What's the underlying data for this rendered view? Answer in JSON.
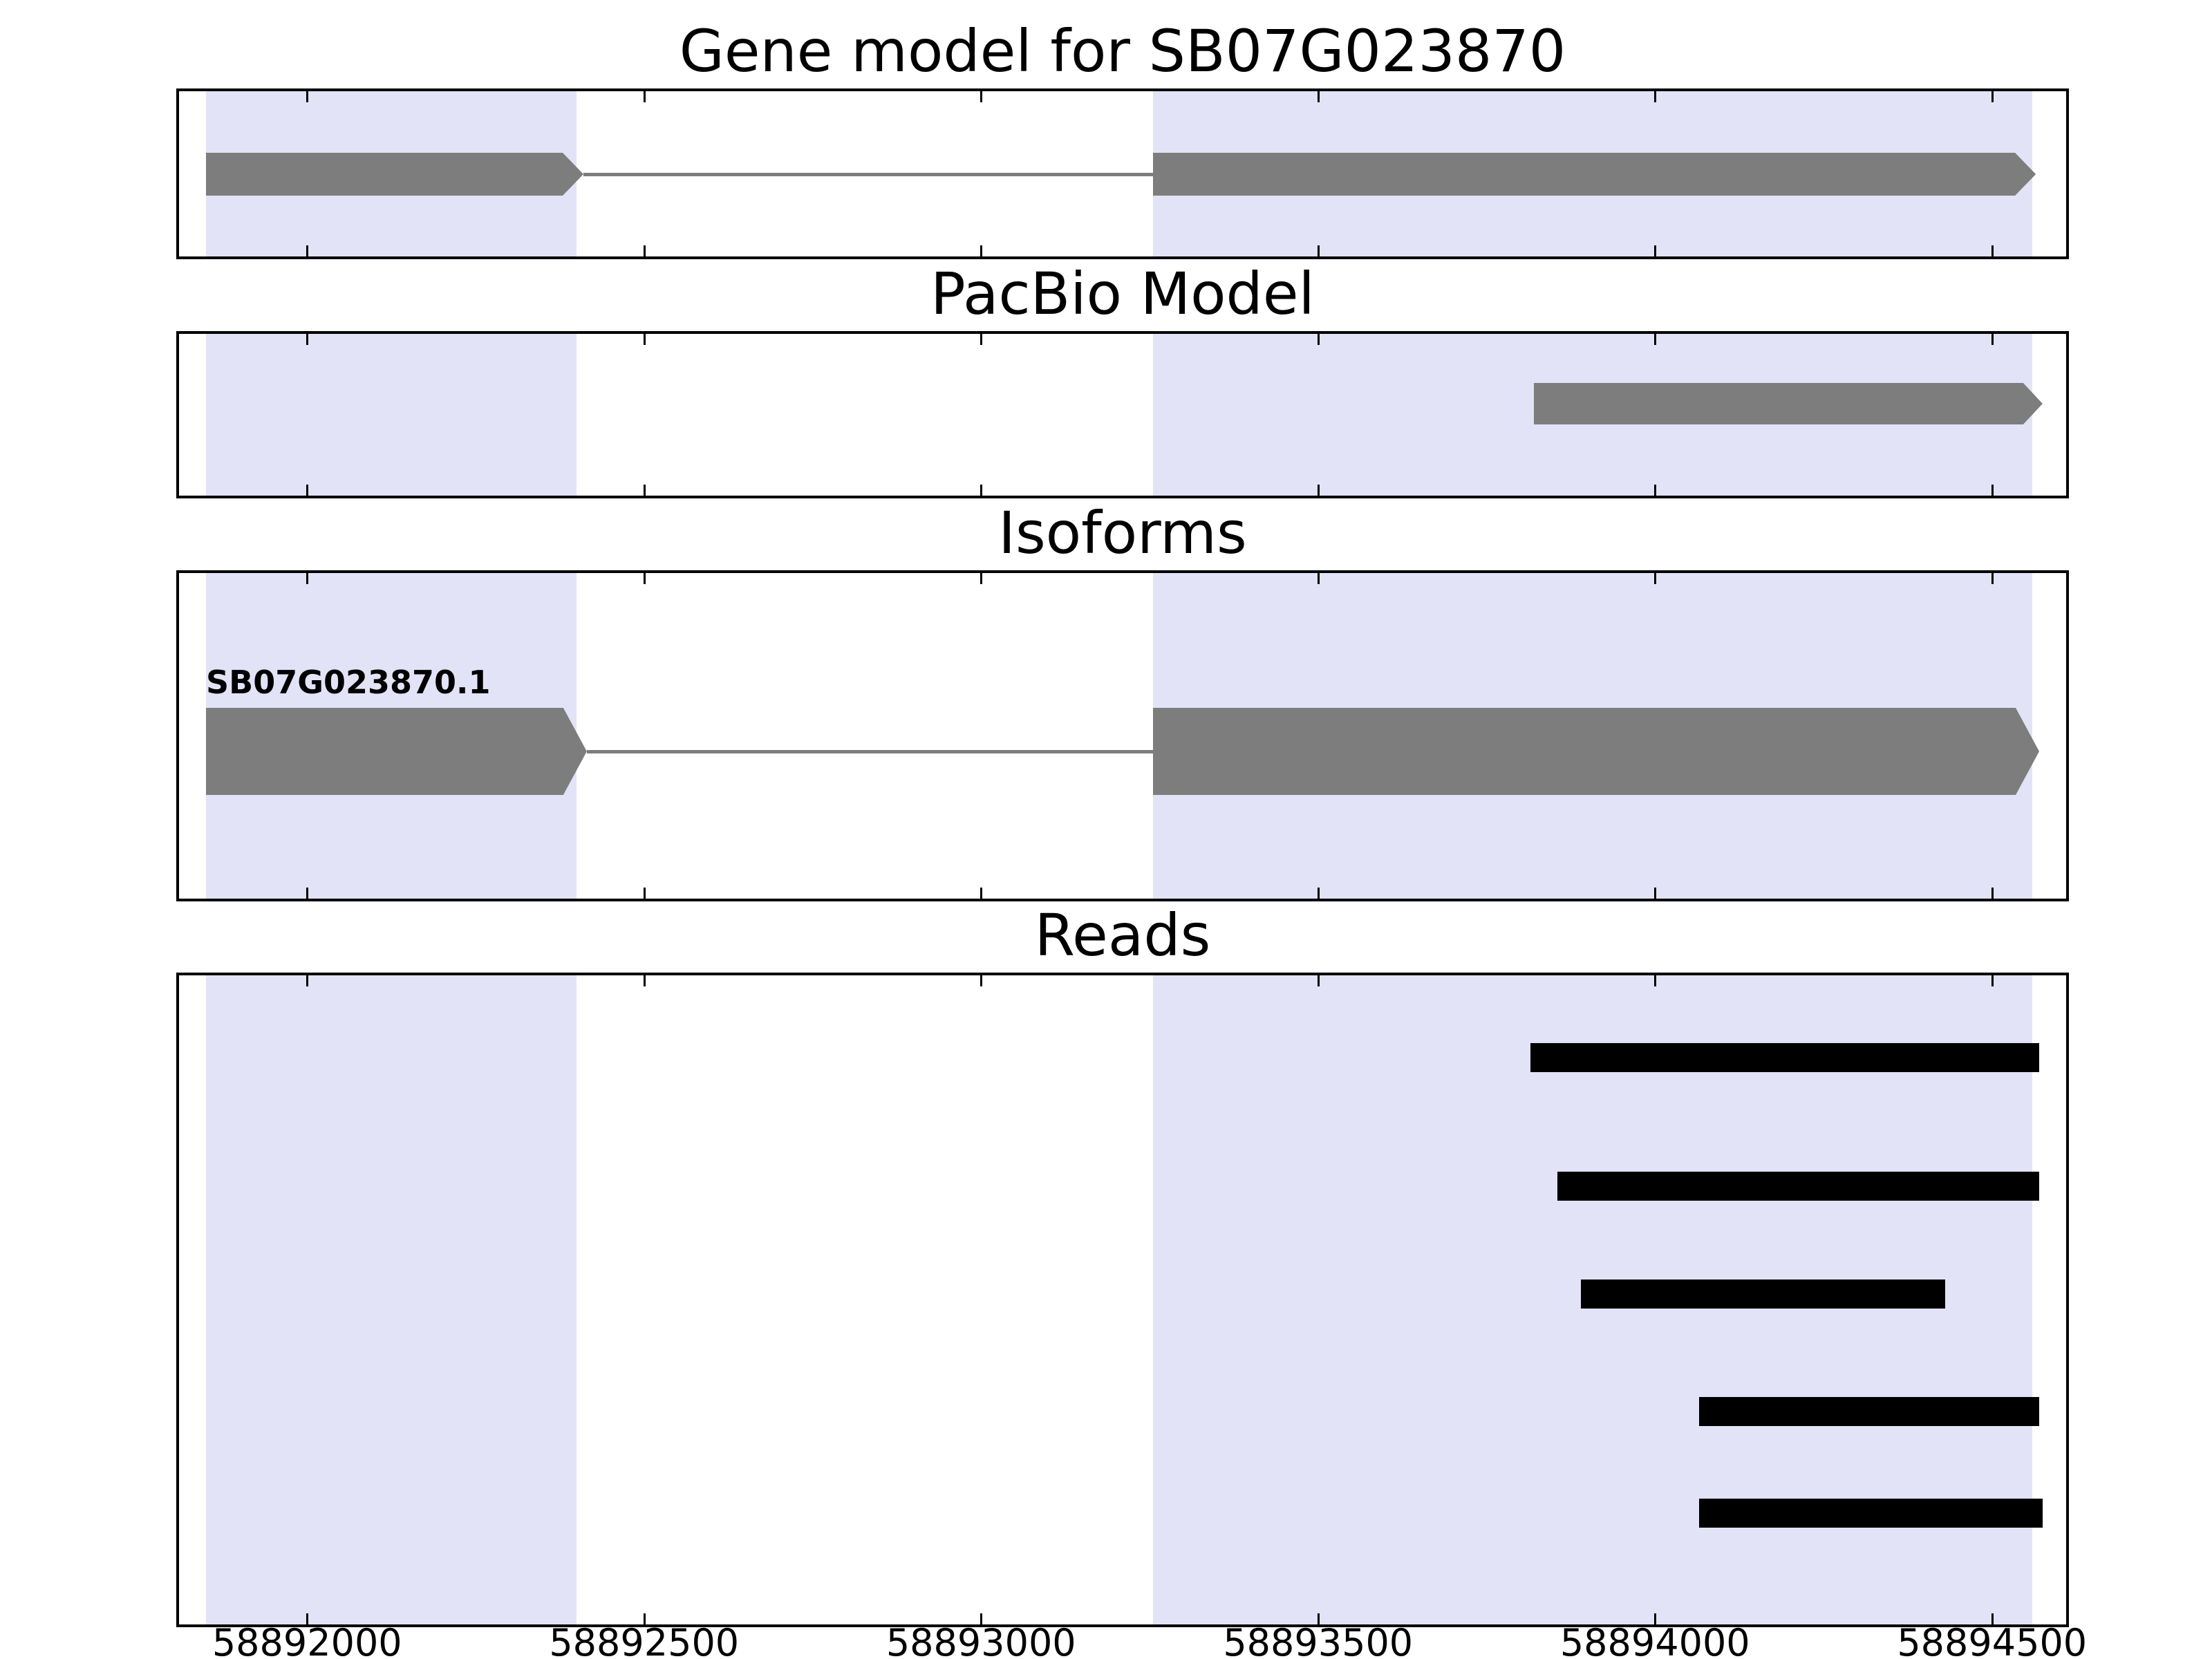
{
  "chart_data": {
    "type": "gene-model-tracks",
    "xlim": [
      58891810,
      58894610
    ],
    "x_ticks": [
      58892000,
      58892500,
      58893000,
      58893500,
      58894000,
      58894500
    ],
    "x_tick_labels": [
      "58892000",
      "58892500",
      "58893000",
      "58893500",
      "58894000",
      "58894500"
    ],
    "shaded_regions": [
      {
        "start": 58891850,
        "end": 58892400
      },
      {
        "start": 58893255,
        "end": 58894560
      }
    ],
    "colors": {
      "shading": "#e3e3f7",
      "feature_gray": "#7d7d7d",
      "read_black": "#000000",
      "border": "#000000"
    },
    "panels": [
      {
        "id": "gene_model",
        "title": "Gene model for SB07G023870",
        "features": [
          {
            "kind": "exon",
            "start": 58891850,
            "end": 58892410,
            "arrow": "right"
          },
          {
            "kind": "intron",
            "start": 58892410,
            "end": 58893255
          },
          {
            "kind": "exon",
            "start": 58893255,
            "end": 58894565,
            "arrow": "right"
          }
        ]
      },
      {
        "id": "pacbio",
        "title": "PacBio Model",
        "features": [
          {
            "kind": "exon",
            "start": 58893820,
            "end": 58894575,
            "arrow": "right"
          }
        ]
      },
      {
        "id": "isoforms",
        "title": "Isoforms",
        "isoform_label": "SB07G023870.1",
        "features": [
          {
            "kind": "exon",
            "start": 58891850,
            "end": 58892415,
            "arrow": "right"
          },
          {
            "kind": "intron",
            "start": 58892415,
            "end": 58893255
          },
          {
            "kind": "exon",
            "start": 58893255,
            "end": 58894570,
            "arrow": "right"
          }
        ]
      },
      {
        "id": "reads",
        "title": "Reads",
        "reads": [
          {
            "start": 58893815,
            "end": 58894570
          },
          {
            "start": 58893855,
            "end": 58894570
          },
          {
            "start": 58893890,
            "end": 58894430
          },
          {
            "start": 58894065,
            "end": 58894570
          },
          {
            "start": 58894065,
            "end": 58894575
          }
        ]
      }
    ]
  }
}
